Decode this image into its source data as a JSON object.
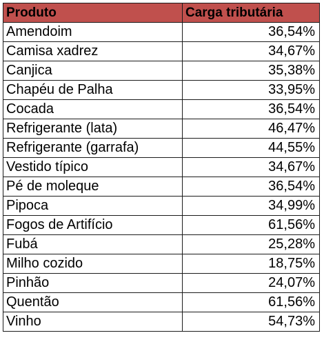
{
  "colors": {
    "header_bg": "#c0504d",
    "border": "#1a1a1a"
  },
  "table": {
    "headers": [
      "Produto",
      "Carga tributária"
    ],
    "rows": [
      [
        "Amendoim",
        "36,54%"
      ],
      [
        "Camisa xadrez",
        "34,67%"
      ],
      [
        "Canjica",
        "35,38%"
      ],
      [
        "Chapéu de Palha",
        "33,95%"
      ],
      [
        "Cocada",
        "36,54%"
      ],
      [
        "Refrigerante (lata)",
        "46,47%"
      ],
      [
        "Refrigerante (garrafa)",
        "44,55%"
      ],
      [
        "Vestido típico",
        "34,67%"
      ],
      [
        "Pé de moleque",
        "36,54%"
      ],
      [
        "Pipoca",
        "34,99%"
      ],
      [
        "Fogos de Artifício",
        "61,56%"
      ],
      [
        "Fubá",
        "25,28%"
      ],
      [
        "Milho cozido",
        "18,75%"
      ],
      [
        "Pinhão",
        "24,07%"
      ],
      [
        "Quentão",
        "61,56%"
      ],
      [
        "Vinho",
        "54,73%"
      ]
    ]
  }
}
